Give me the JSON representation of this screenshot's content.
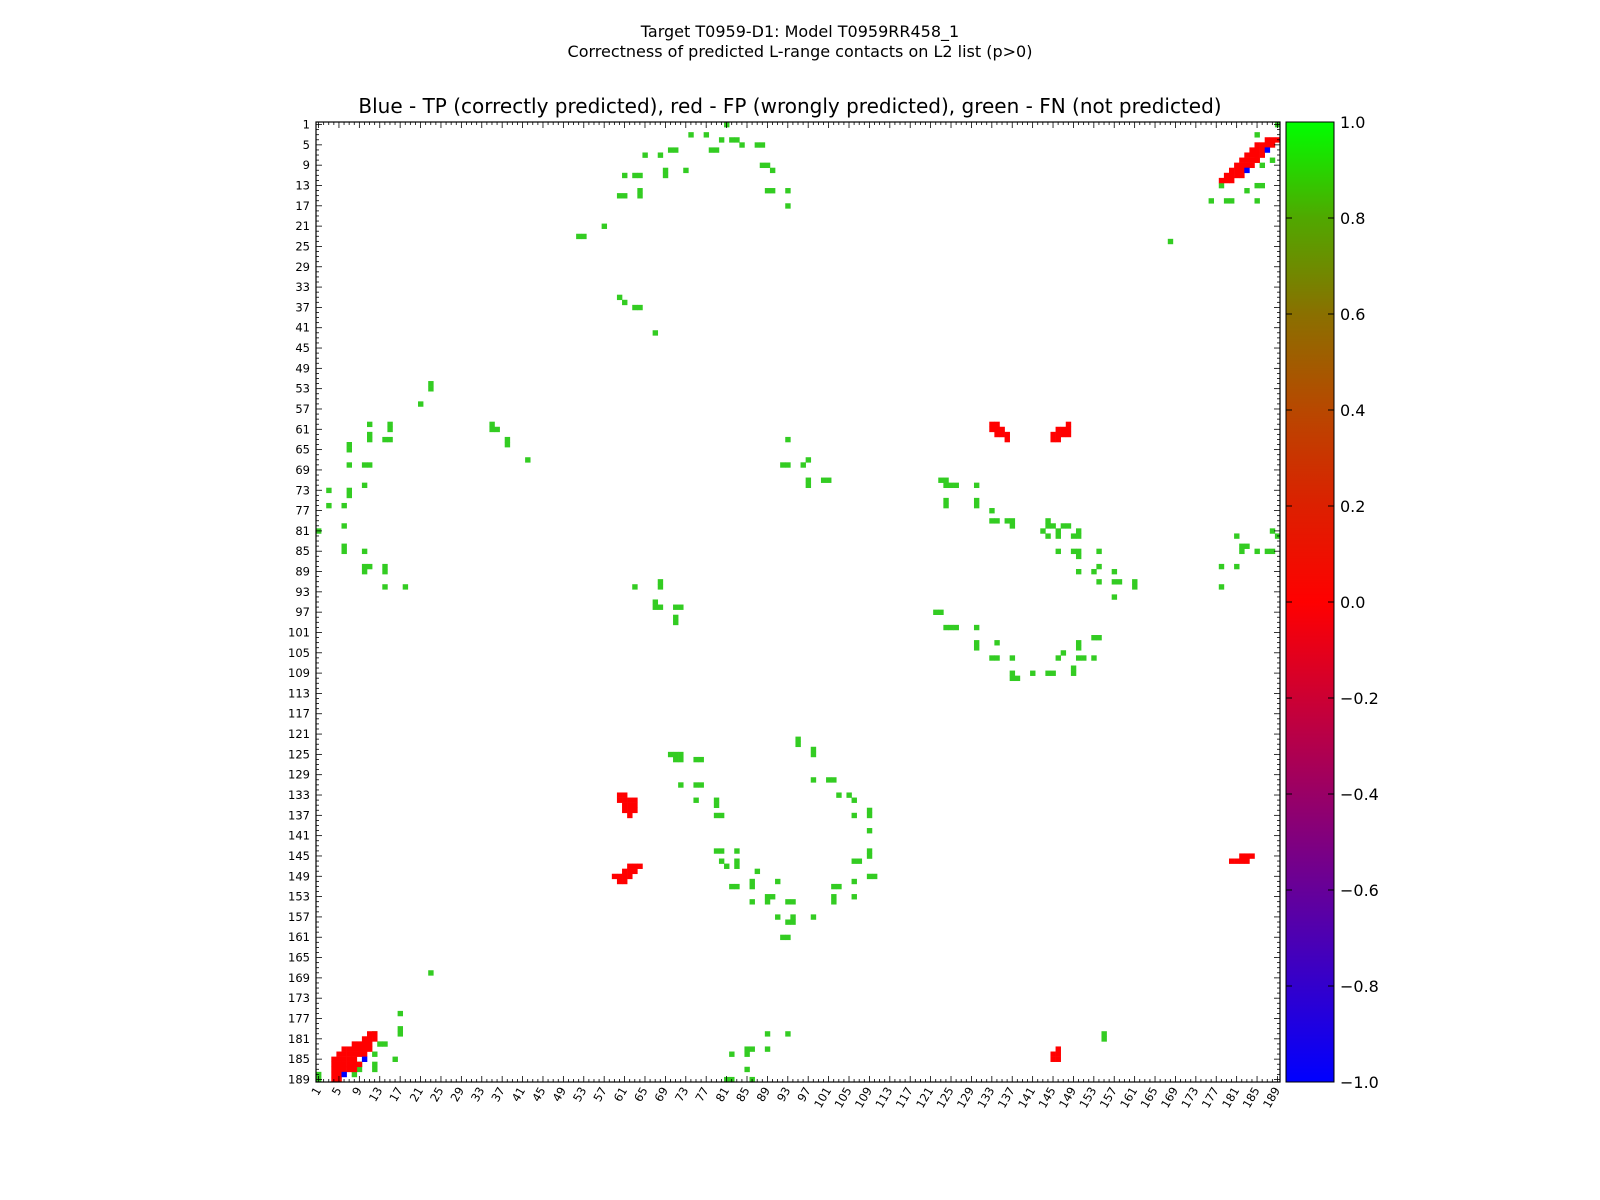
{
  "figure": {
    "title_line1": "Target T0959-D1: Model T0959RR458_1",
    "title_line2": "Correctness of predicted L-range contacts on L2 list (p>0)"
  },
  "chart_data": {
    "type": "heatmap",
    "title": "Blue - TP (correctly predicted), red - FP (wrongly predicted), green - FN (not predicted)",
    "xlabel": "",
    "ylabel": "",
    "xlim": [
      1,
      189
    ],
    "ylim": [
      1,
      189
    ],
    "y_inverted": true,
    "ticks": [
      1,
      5,
      9,
      13,
      17,
      21,
      25,
      29,
      33,
      37,
      41,
      45,
      49,
      53,
      57,
      61,
      65,
      69,
      73,
      77,
      81,
      85,
      89,
      93,
      97,
      101,
      105,
      109,
      113,
      117,
      121,
      125,
      129,
      133,
      137,
      141,
      145,
      149,
      153,
      157,
      161,
      165,
      169,
      173,
      177,
      181,
      185,
      189
    ],
    "colorbar": {
      "min": -1.0,
      "max": 1.0,
      "ticks": [
        "1.0",
        "0.8",
        "0.6",
        "0.4",
        "0.2",
        "0.0",
        "−0.2",
        "−0.4",
        "−0.6",
        "−0.8",
        "−1.0"
      ],
      "colors": [
        "#00ff00",
        "#d00000",
        "#0000ff"
      ]
    },
    "legend": {
      "TP": {
        "value": -1.0,
        "color": "#0000ff"
      },
      "FP": {
        "value": 0.0,
        "color": "#ff0000"
      },
      "FN": {
        "value": 0.8,
        "color": "#33cc22"
      }
    },
    "tp_points": [
      [
        6,
        188
      ],
      [
        10,
        185
      ],
      [
        183,
        10
      ],
      [
        187,
        6
      ]
    ],
    "fp_points": [
      [
        4,
        185
      ],
      [
        4,
        186
      ],
      [
        4,
        187
      ],
      [
        4,
        188
      ],
      [
        4,
        189
      ],
      [
        5,
        184
      ],
      [
        5,
        185
      ],
      [
        5,
        186
      ],
      [
        5,
        187
      ],
      [
        5,
        188
      ],
      [
        5,
        189
      ],
      [
        6,
        183
      ],
      [
        6,
        184
      ],
      [
        6,
        185
      ],
      [
        6,
        186
      ],
      [
        6,
        187
      ],
      [
        7,
        183
      ],
      [
        7,
        184
      ],
      [
        7,
        185
      ],
      [
        7,
        186
      ],
      [
        7,
        187
      ],
      [
        8,
        182
      ],
      [
        8,
        183
      ],
      [
        8,
        184
      ],
      [
        8,
        185
      ],
      [
        8,
        186
      ],
      [
        8,
        187
      ],
      [
        9,
        182
      ],
      [
        9,
        183
      ],
      [
        9,
        184
      ],
      [
        9,
        186
      ],
      [
        10,
        181
      ],
      [
        10,
        182
      ],
      [
        10,
        183
      ],
      [
        10,
        184
      ],
      [
        11,
        180
      ],
      [
        11,
        181
      ],
      [
        11,
        182
      ],
      [
        11,
        183
      ],
      [
        12,
        180
      ],
      [
        12,
        181
      ],
      [
        60,
        133
      ],
      [
        60,
        134
      ],
      [
        61,
        133
      ],
      [
        61,
        134
      ],
      [
        61,
        135
      ],
      [
        61,
        136
      ],
      [
        62,
        134
      ],
      [
        62,
        135
      ],
      [
        62,
        136
      ],
      [
        62,
        137
      ],
      [
        63,
        134
      ],
      [
        63,
        135
      ],
      [
        63,
        136
      ],
      [
        59,
        149
      ],
      [
        60,
        149
      ],
      [
        60,
        150
      ],
      [
        61,
        148
      ],
      [
        61,
        149
      ],
      [
        61,
        150
      ],
      [
        62,
        147
      ],
      [
        62,
        148
      ],
      [
        62,
        149
      ],
      [
        63,
        147
      ],
      [
        63,
        148
      ],
      [
        64,
        147
      ],
      [
        133,
        60
      ],
      [
        133,
        61
      ],
      [
        134,
        60
      ],
      [
        134,
        61
      ],
      [
        134,
        62
      ],
      [
        135,
        61
      ],
      [
        135,
        62
      ],
      [
        136,
        62
      ],
      [
        136,
        63
      ],
      [
        145,
        62
      ],
      [
        145,
        63
      ],
      [
        146,
        61
      ],
      [
        146,
        62
      ],
      [
        146,
        63
      ],
      [
        147,
        61
      ],
      [
        147,
        62
      ],
      [
        148,
        60
      ],
      [
        148,
        61
      ],
      [
        148,
        62
      ],
      [
        145,
        184
      ],
      [
        145,
        185
      ],
      [
        146,
        183
      ],
      [
        146,
        184
      ],
      [
        146,
        185
      ],
      [
        180,
        146
      ],
      [
        181,
        146
      ],
      [
        182,
        145
      ],
      [
        182,
        146
      ],
      [
        183,
        145
      ],
      [
        183,
        146
      ],
      [
        184,
        145
      ],
      [
        178,
        12
      ],
      [
        179,
        11
      ],
      [
        179,
        12
      ],
      [
        180,
        10
      ],
      [
        180,
        11
      ],
      [
        180,
        12
      ],
      [
        181,
        9
      ],
      [
        181,
        10
      ],
      [
        181,
        11
      ],
      [
        182,
        8
      ],
      [
        182,
        9
      ],
      [
        182,
        10
      ],
      [
        182,
        11
      ],
      [
        183,
        7
      ],
      [
        183,
        8
      ],
      [
        183,
        9
      ],
      [
        184,
        6
      ],
      [
        184,
        7
      ],
      [
        184,
        8
      ],
      [
        184,
        9
      ],
      [
        185,
        5
      ],
      [
        185,
        6
      ],
      [
        185,
        7
      ],
      [
        185,
        8
      ],
      [
        186,
        5
      ],
      [
        186,
        6
      ],
      [
        186,
        7
      ],
      [
        187,
        4
      ],
      [
        187,
        5
      ],
      [
        188,
        4
      ],
      [
        188,
        5
      ],
      [
        189,
        4
      ]
    ],
    "fn_points": [
      [
        81,
        1
      ],
      [
        80,
        4
      ],
      [
        83,
        4
      ],
      [
        82,
        4
      ],
      [
        84,
        5
      ],
      [
        88,
        5
      ],
      [
        87,
        5
      ],
      [
        74,
        3
      ],
      [
        77,
        3
      ],
      [
        79,
        6
      ],
      [
        78,
        6
      ],
      [
        65,
        7
      ],
      [
        68,
        7
      ],
      [
        71,
        6
      ],
      [
        70,
        6
      ],
      [
        88,
        9
      ],
      [
        89,
        9
      ],
      [
        90,
        10
      ],
      [
        61,
        11
      ],
      [
        63,
        11
      ],
      [
        64,
        11
      ],
      [
        69,
        10
      ],
      [
        69,
        11
      ],
      [
        73,
        10
      ],
      [
        60,
        15
      ],
      [
        61,
        15
      ],
      [
        64,
        14
      ],
      [
        64,
        15
      ],
      [
        89,
        14
      ],
      [
        90,
        14
      ],
      [
        93,
        14
      ],
      [
        93,
        17
      ],
      [
        52,
        23
      ],
      [
        53,
        23
      ],
      [
        57,
        21
      ],
      [
        60,
        35
      ],
      [
        61,
        36
      ],
      [
        63,
        37
      ],
      [
        64,
        37
      ],
      [
        67,
        42
      ],
      [
        176,
        16
      ],
      [
        179,
        16
      ],
      [
        180,
        16
      ],
      [
        185,
        16
      ],
      [
        185,
        3
      ],
      [
        185,
        8
      ],
      [
        186,
        9
      ],
      [
        188,
        8
      ],
      [
        185,
        13
      ],
      [
        186,
        13
      ],
      [
        189,
        1
      ],
      [
        168,
        24
      ],
      [
        178,
        13
      ],
      [
        183,
        14
      ],
      [
        23,
        52
      ],
      [
        23,
        53
      ],
      [
        21,
        56
      ],
      [
        35,
        60
      ],
      [
        36,
        61
      ],
      [
        35,
        61
      ],
      [
        38,
        63
      ],
      [
        38,
        64
      ],
      [
        42,
        67
      ],
      [
        11,
        60
      ],
      [
        15,
        60
      ],
      [
        15,
        61
      ],
      [
        11,
        62
      ],
      [
        11,
        63
      ],
      [
        14,
        63
      ],
      [
        15,
        63
      ],
      [
        7,
        64
      ],
      [
        7,
        65
      ],
      [
        7,
        68
      ],
      [
        10,
        68
      ],
      [
        11,
        68
      ],
      [
        10,
        72
      ],
      [
        3,
        73
      ],
      [
        7,
        73
      ],
      [
        7,
        74
      ],
      [
        3,
        76
      ],
      [
        6,
        76
      ],
      [
        6,
        80
      ],
      [
        6,
        84
      ],
      [
        6,
        85
      ],
      [
        10,
        85
      ],
      [
        10,
        88
      ],
      [
        11,
        88
      ],
      [
        10,
        89
      ],
      [
        14,
        88
      ],
      [
        14,
        89
      ],
      [
        14,
        92
      ],
      [
        18,
        92
      ],
      [
        1,
        81
      ],
      [
        93,
        63
      ],
      [
        92,
        68
      ],
      [
        93,
        68
      ],
      [
        96,
        68
      ],
      [
        97,
        67
      ],
      [
        97,
        71
      ],
      [
        97,
        72
      ],
      [
        100,
        71
      ],
      [
        101,
        71
      ],
      [
        63,
        92
      ],
      [
        68,
        91
      ],
      [
        68,
        92
      ],
      [
        67,
        95
      ],
      [
        68,
        96
      ],
      [
        67,
        96
      ],
      [
        71,
        96
      ],
      [
        72,
        96
      ],
      [
        71,
        98
      ],
      [
        71,
        99
      ],
      [
        123,
        71
      ],
      [
        124,
        71
      ],
      [
        124,
        72
      ],
      [
        125,
        72
      ],
      [
        126,
        72
      ],
      [
        124,
        75
      ],
      [
        124,
        76
      ],
      [
        130,
        72
      ],
      [
        130,
        75
      ],
      [
        130,
        76
      ],
      [
        133,
        77
      ],
      [
        133,
        79
      ],
      [
        134,
        79
      ],
      [
        136,
        79
      ],
      [
        137,
        79
      ],
      [
        137,
        80
      ],
      [
        144,
        79
      ],
      [
        144,
        80
      ],
      [
        145,
        80
      ],
      [
        147,
        80
      ],
      [
        148,
        80
      ],
      [
        143,
        81
      ],
      [
        144,
        82
      ],
      [
        146,
        81
      ],
      [
        146,
        82
      ],
      [
        149,
        82
      ],
      [
        150,
        82
      ],
      [
        150,
        81
      ],
      [
        146,
        85
      ],
      [
        149,
        85
      ],
      [
        150,
        85
      ],
      [
        150,
        86
      ],
      [
        154,
        85
      ],
      [
        150,
        89
      ],
      [
        153,
        89
      ],
      [
        154,
        88
      ],
      [
        157,
        89
      ],
      [
        154,
        91
      ],
      [
        157,
        91
      ],
      [
        158,
        91
      ],
      [
        161,
        91
      ],
      [
        161,
        92
      ],
      [
        157,
        94
      ],
      [
        181,
        82
      ],
      [
        182,
        84
      ],
      [
        183,
        84
      ],
      [
        182,
        85
      ],
      [
        185,
        85
      ],
      [
        187,
        85
      ],
      [
        188,
        85
      ],
      [
        188,
        81
      ],
      [
        189,
        82
      ],
      [
        178,
        88
      ],
      [
        181,
        88
      ],
      [
        178,
        92
      ],
      [
        122,
        97
      ],
      [
        123,
        97
      ],
      [
        124,
        100
      ],
      [
        125,
        100
      ],
      [
        126,
        100
      ],
      [
        130,
        100
      ],
      [
        130,
        103
      ],
      [
        130,
        104
      ],
      [
        134,
        103
      ],
      [
        133,
        106
      ],
      [
        134,
        106
      ],
      [
        137,
        106
      ],
      [
        137,
        109
      ],
      [
        137,
        110
      ],
      [
        138,
        110
      ],
      [
        141,
        109
      ],
      [
        144,
        109
      ],
      [
        145,
        109
      ],
      [
        146,
        106
      ],
      [
        147,
        105
      ],
      [
        150,
        103
      ],
      [
        150,
        104
      ],
      [
        150,
        106
      ],
      [
        151,
        106
      ],
      [
        153,
        102
      ],
      [
        154,
        102
      ],
      [
        153,
        106
      ],
      [
        149,
        108
      ],
      [
        149,
        109
      ],
      [
        70,
        125
      ],
      [
        71,
        125
      ],
      [
        71,
        126
      ],
      [
        72,
        125
      ],
      [
        72,
        126
      ],
      [
        75,
        126
      ],
      [
        76,
        126
      ],
      [
        95,
        122
      ],
      [
        95,
        123
      ],
      [
        98,
        124
      ],
      [
        98,
        125
      ],
      [
        72,
        131
      ],
      [
        75,
        131
      ],
      [
        76,
        131
      ],
      [
        75,
        134
      ],
      [
        79,
        134
      ],
      [
        79,
        135
      ],
      [
        79,
        137
      ],
      [
        80,
        137
      ],
      [
        80,
        146
      ],
      [
        79,
        144
      ],
      [
        80,
        144
      ],
      [
        83,
        144
      ],
      [
        81,
        147
      ],
      [
        83,
        146
      ],
      [
        83,
        147
      ],
      [
        87,
        148
      ],
      [
        82,
        151
      ],
      [
        83,
        151
      ],
      [
        86,
        150
      ],
      [
        86,
        151
      ],
      [
        91,
        150
      ],
      [
        98,
        130
      ],
      [
        101,
        130
      ],
      [
        102,
        130
      ],
      [
        103,
        133
      ],
      [
        105,
        133
      ],
      [
        106,
        134
      ],
      [
        106,
        137
      ],
      [
        109,
        136
      ],
      [
        109,
        137
      ],
      [
        109,
        140
      ],
      [
        109,
        144
      ],
      [
        109,
        145
      ],
      [
        106,
        146
      ],
      [
        107,
        146
      ],
      [
        109,
        149
      ],
      [
        110,
        149
      ],
      [
        106,
        150
      ],
      [
        102,
        151
      ],
      [
        103,
        151
      ],
      [
        102,
        153
      ],
      [
        102,
        154
      ],
      [
        106,
        153
      ],
      [
        86,
        154
      ],
      [
        89,
        153
      ],
      [
        90,
        153
      ],
      [
        89,
        154
      ],
      [
        93,
        154
      ],
      [
        94,
        154
      ],
      [
        98,
        157
      ],
      [
        93,
        158
      ],
      [
        94,
        157
      ],
      [
        94,
        158
      ],
      [
        91,
        157
      ],
      [
        92,
        161
      ],
      [
        93,
        161
      ],
      [
        23,
        168
      ],
      [
        17,
        176
      ],
      [
        17,
        179
      ],
      [
        17,
        180
      ],
      [
        12,
        180
      ],
      [
        13,
        182
      ],
      [
        14,
        182
      ],
      [
        12,
        184
      ],
      [
        12,
        186
      ],
      [
        12,
        187
      ],
      [
        9,
        186
      ],
      [
        8,
        188
      ],
      [
        9,
        187
      ],
      [
        16,
        185
      ],
      [
        1,
        188
      ],
      [
        1,
        189
      ],
      [
        81,
        189
      ],
      [
        82,
        189
      ],
      [
        82,
        184
      ],
      [
        85,
        183
      ],
      [
        86,
        183
      ],
      [
        85,
        184
      ],
      [
        85,
        187
      ],
      [
        86,
        189
      ],
      [
        89,
        180
      ],
      [
        89,
        183
      ],
      [
        93,
        180
      ],
      [
        155,
        180
      ],
      [
        155,
        181
      ]
    ]
  }
}
